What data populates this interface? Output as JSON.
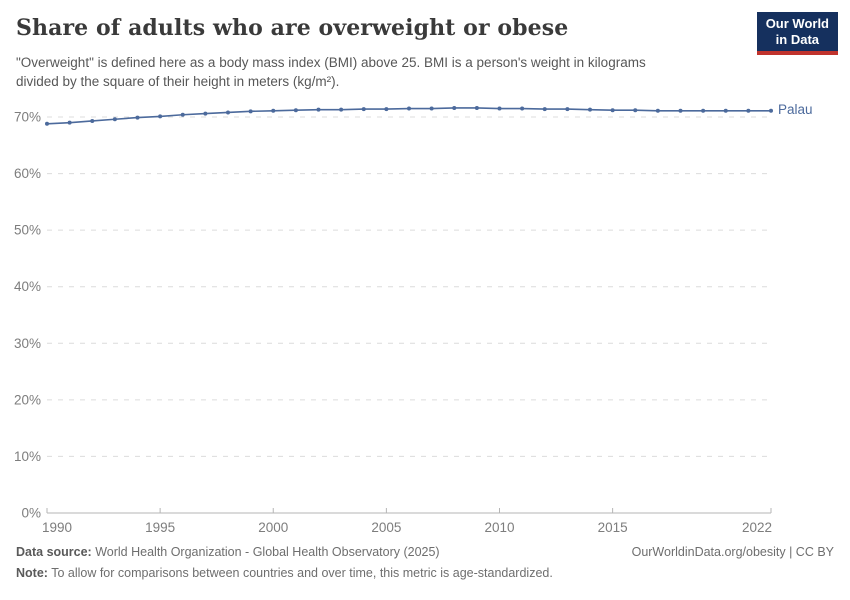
{
  "header": {
    "title": "Share of adults who are overweight or obese",
    "subtitle_line1": "\"Overweight\" is defined here as a body mass index (BMI) above 25. BMI is a person's weight in kilograms",
    "subtitle_line2": "divided by the square of their height in meters (kg/m²).",
    "logo_line1": "Our World",
    "logo_line2": "in Data",
    "logo_bg_color": "#15305e",
    "logo_accent_color": "#c0332d"
  },
  "chart_data": {
    "type": "line",
    "title": "Share of adults who are overweight or obese",
    "xlabel": "",
    "ylabel": "",
    "x": [
      1990,
      1991,
      1992,
      1993,
      1994,
      1995,
      1996,
      1997,
      1998,
      1999,
      2000,
      2001,
      2002,
      2003,
      2004,
      2005,
      2006,
      2007,
      2008,
      2009,
      2010,
      2011,
      2012,
      2013,
      2014,
      2015,
      2016,
      2017,
      2018,
      2019,
      2020,
      2021,
      2022
    ],
    "series": [
      {
        "name": "Palau",
        "color": "#4c6a9c",
        "values": [
          68.8,
          69.0,
          69.3,
          69.6,
          69.9,
          70.1,
          70.4,
          70.6,
          70.8,
          71.0,
          71.1,
          71.2,
          71.3,
          71.3,
          71.4,
          71.4,
          71.5,
          71.5,
          71.6,
          71.6,
          71.5,
          71.5,
          71.4,
          71.4,
          71.3,
          71.2,
          71.2,
          71.1,
          71.1,
          71.1,
          71.1,
          71.1,
          71.1
        ]
      }
    ],
    "ylim": [
      0,
      70
    ],
    "yticks": [
      0,
      10,
      20,
      30,
      40,
      50,
      60,
      70
    ],
    "ytick_suffix": "%",
    "xticks": [
      1990,
      1995,
      2000,
      2005,
      2010,
      2015,
      2022
    ],
    "grid": "horizontal-dashed",
    "legend_position": "right-of-line",
    "grid_color": "#dcdcdc",
    "axis_color": "#b5b5b5",
    "tick_color": "#7d7d7d"
  },
  "footer": {
    "datasource_label": "Data source:",
    "datasource_value": "World Health Organization - Global Health Observatory (2025)",
    "attribution": "OurWorldinData.org/obesity | CC BY",
    "note_label": "Note:",
    "note_value": "To allow for comparisons between countries and over time, this metric is age-standardized."
  }
}
